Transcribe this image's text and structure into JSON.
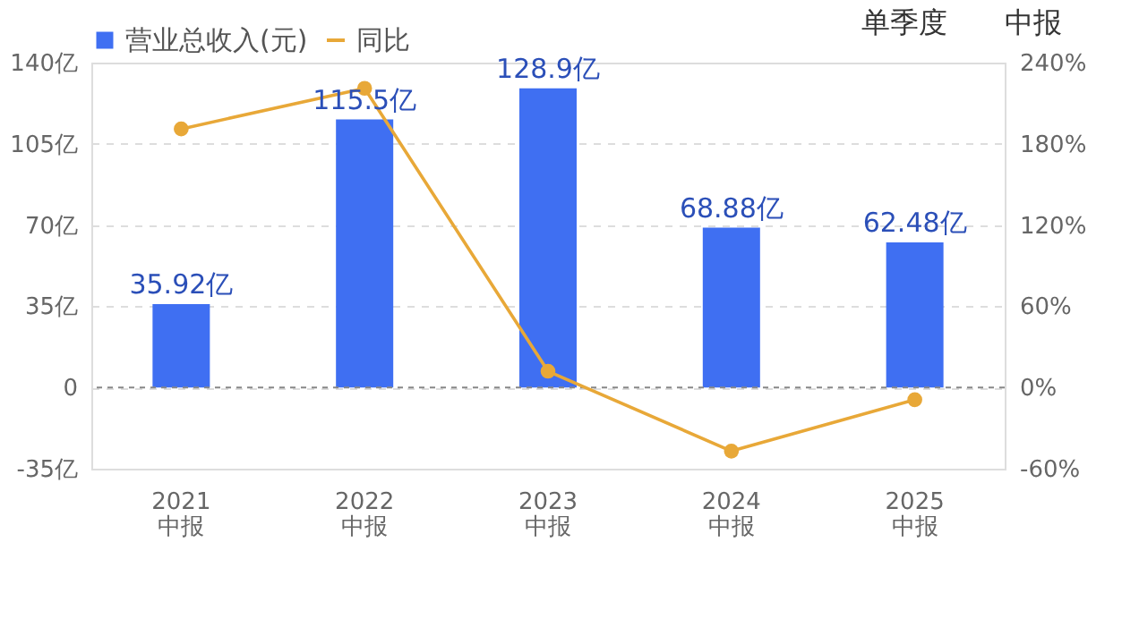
{
  "chart_data": {
    "type": "bar",
    "categories": [
      "2021\n中报",
      "2022\n中报",
      "2023\n中报",
      "2024\n中报",
      "2025\n中报"
    ],
    "series": [
      {
        "name": "营业总收入(元)",
        "color": "#3f6ff2",
        "values": [
          35.92,
          115.5,
          128.9,
          68.88,
          62.48
        ],
        "value_labels": [
          "35.92亿",
          "115.5亿",
          "128.9亿",
          "68.88亿",
          "62.48亿"
        ]
      },
      {
        "name": "同比",
        "type": "line",
        "axis": "y2",
        "color": "#e8a838",
        "marker": "circle",
        "values": [
          191,
          221,
          12,
          -47,
          -9
        ]
      }
    ],
    "ylim": [
      -35,
      140
    ],
    "yticks": [
      {
        "value": -35,
        "label": "-35亿"
      },
      0,
      {
        "value": 35,
        "label": "35亿"
      },
      {
        "value": 70,
        "label": "70亿"
      },
      {
        "value": 105,
        "label": "105亿"
      },
      {
        "value": 140,
        "label": "140亿"
      }
    ],
    "y2lim": [
      -60,
      240
    ],
    "y2ticks": [
      {
        "value": -60,
        "label": "-60%"
      },
      {
        "value": 0,
        "label": "0%"
      },
      {
        "value": 60,
        "label": "60%"
      },
      {
        "value": 120,
        "label": "120%"
      },
      {
        "value": 180,
        "label": "180%"
      },
      {
        "value": 240,
        "label": "240%"
      }
    ],
    "grid": "y",
    "ref_lines": [
      {
        "axis": "y",
        "value": 0,
        "color": "#888888",
        "line_style": "dashed"
      }
    ],
    "legend": "top left",
    "annotations": [
      "单季度",
      "中报"
    ]
  }
}
